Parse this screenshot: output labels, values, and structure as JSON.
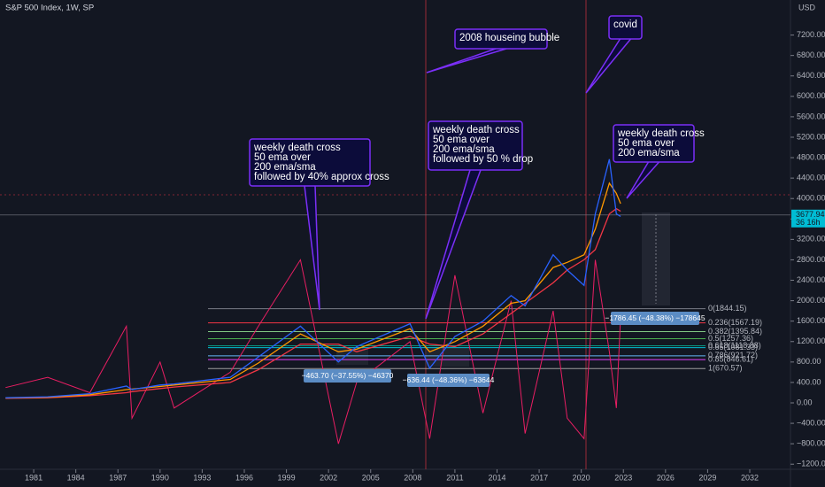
{
  "header": {
    "title": "S&P 500 Index, 1W, SP",
    "currency": "USD"
  },
  "chart_data": {
    "type": "line",
    "x": [
      1979,
      1982,
      1985,
      1987.6,
      1988,
      1990,
      1991,
      1995,
      1997,
      2000,
      2002.7,
      2004,
      2007.8,
      2009.2,
      2011,
      2013,
      2015,
      2016,
      2018,
      2019,
      2020.2,
      2021,
      2022,
      2022.5,
      2022.8
    ],
    "series": [
      {
        "color": "#e91e63",
        "values": [
          300,
          500,
          200,
          1500,
          -300,
          800,
          -100,
          600,
          1500,
          2800,
          -800,
          400,
          1200,
          -700,
          2500,
          -200,
          2000,
          -600,
          1800,
          -300,
          -700,
          2800,
          1000,
          -100,
          1700
        ]
      },
      {
        "color": "#f23645",
        "values": [
          90,
          100,
          140,
          200,
          220,
          280,
          310,
          400,
          650,
          1150,
          1150,
          1000,
          1300,
          1150,
          1100,
          1350,
          1750,
          1950,
          2350,
          2600,
          2800,
          3000,
          3700,
          3800,
          3750
        ]
      },
      {
        "color": "#ff9800",
        "values": [
          95,
          110,
          160,
          260,
          270,
          320,
          350,
          460,
          780,
          1350,
          1000,
          1050,
          1450,
          1000,
          1200,
          1500,
          1950,
          2000,
          2650,
          2750,
          2900,
          3400,
          4300,
          4100,
          3900
        ]
      },
      {
        "color": "#2962ff",
        "values": [
          100,
          120,
          180,
          330,
          260,
          350,
          370,
          500,
          900,
          1500,
          800,
          1100,
          1550,
          680,
          1300,
          1600,
          2100,
          1900,
          2900,
          2600,
          2300,
          3700,
          4770,
          3700,
          3650
        ]
      }
    ],
    "xlim": [
      1978.6,
      2034.9
    ],
    "xticks": [
      1981,
      1984,
      1987,
      1990,
      1993,
      1996,
      1999,
      2002,
      2005,
      2008,
      2011,
      2014,
      2017,
      2020,
      2023,
      2026,
      2029,
      2032
    ],
    "ylim": [
      -1300,
      7886
    ],
    "yticks": [
      {
        "value": 7200,
        "label": "7200.00"
      },
      {
        "value": 6800,
        "label": "6800.00"
      },
      {
        "value": 6400,
        "label": "6400.00"
      },
      {
        "value": 6000,
        "label": "6000.00"
      },
      {
        "value": 5600,
        "label": "5600.00"
      },
      {
        "value": 5200,
        "label": "5200.00"
      },
      {
        "value": 4800,
        "label": "4800.00"
      },
      {
        "value": 4400,
        "label": "4400.00"
      },
      {
        "value": 4000,
        "label": "4000.00"
      },
      {
        "value": 3600,
        "label": "3600.00"
      },
      {
        "value": 3200,
        "label": "3200.00"
      },
      {
        "value": 2800,
        "label": "2800.00"
      },
      {
        "value": 2400,
        "label": "2400.00"
      },
      {
        "value": 2000,
        "label": "2000.00"
      },
      {
        "value": 1600,
        "label": "1600.00"
      },
      {
        "value": 1200,
        "label": "1200.00"
      },
      {
        "value": 800,
        "label": "800.00"
      },
      {
        "value": 400,
        "label": "400.00"
      },
      {
        "value": 0,
        "label": "0.00"
      },
      {
        "value": -400,
        "label": "−400.00"
      },
      {
        "value": -800,
        "label": "−800.00"
      },
      {
        "value": -1200,
        "label": "−1200.00"
      }
    ]
  },
  "price_tag": {
    "value": 3677.94,
    "countdown": "36 16h"
  },
  "annotations": [
    {
      "lines": [
        "weekly death cross",
        "50 ema over",
        "200 ema/sma",
        "followed by 40% approx cross"
      ]
    },
    {
      "lines": [
        "weekly death cross",
        "50 ema over",
        "200 ema/sma",
        "followed by 50 % drop"
      ]
    },
    {
      "lines": [
        "weekly death cross",
        "50 ema over",
        "200 ema/sma"
      ]
    },
    {
      "lines": [
        "2008 houseing bubble"
      ]
    },
    {
      "lines": [
        "covid"
      ]
    }
  ],
  "fib_levels": [
    {
      "label": "0(1844.15)",
      "value": 1844.15,
      "color": "#787b86"
    },
    {
      "label": "0.236(1567.19)",
      "value": 1567.19,
      "color": "#f23645"
    },
    {
      "label": "0.382(1395.84)",
      "value": 1395.84,
      "color": "#81c784"
    },
    {
      "label": "0.5(1257.36)",
      "value": 1257.36,
      "color": "#4caf50"
    },
    {
      "label": "0.618(1118.88)",
      "value": 1118.88,
      "color": "#089981"
    },
    {
      "label": "0.65(1081.33)",
      "value": 1081.33,
      "color": "#00bcd4"
    },
    {
      "label": "0.786(921.72)",
      "value": 921.72,
      "color": "#64b5f6"
    },
    {
      "label": "0.85(846.61)",
      "value": 846.61,
      "color": "#e040fb"
    },
    {
      "label": "1(670.57)",
      "value": 670.57,
      "color": "#9e9e9e"
    }
  ],
  "measures": [
    {
      "label": "−463.70 (−37.55%) −46370"
    },
    {
      "label": "−636.44 (−48.36%) −63644"
    },
    {
      "label": "−1786.45 (−48.38%) −178645"
    }
  ]
}
